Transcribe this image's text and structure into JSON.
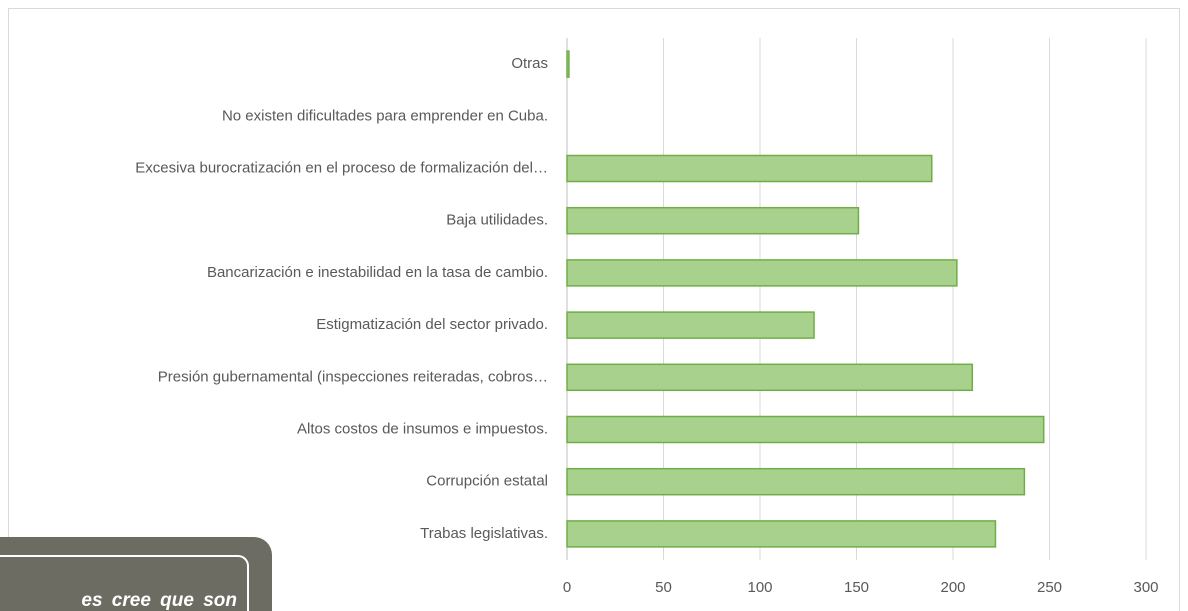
{
  "chart_data": {
    "type": "bar",
    "orientation": "horizontal",
    "categories": [
      "Otras",
      "No existen dificultades para emprender en Cuba.",
      "Excesiva burocratización en el proceso de formalización del…",
      "Baja utilidades.",
      "Bancarización e inestabilidad en la tasa de cambio.",
      "Estigmatización del sector privado.",
      "Presión gubernamental (inspecciones reiteradas, cobros…",
      "Altos costos de insumos e impuestos.",
      "Corrupción estatal",
      "Trabas legislativas."
    ],
    "values": [
      1,
      0,
      189,
      151,
      202,
      128,
      210,
      247,
      237,
      222
    ],
    "color": "#a9d18e",
    "xlim": [
      0,
      300
    ],
    "xticks": [
      0,
      50,
      100,
      150,
      200,
      250,
      300
    ],
    "grid": true
  },
  "overlay_text": "es cree que son"
}
